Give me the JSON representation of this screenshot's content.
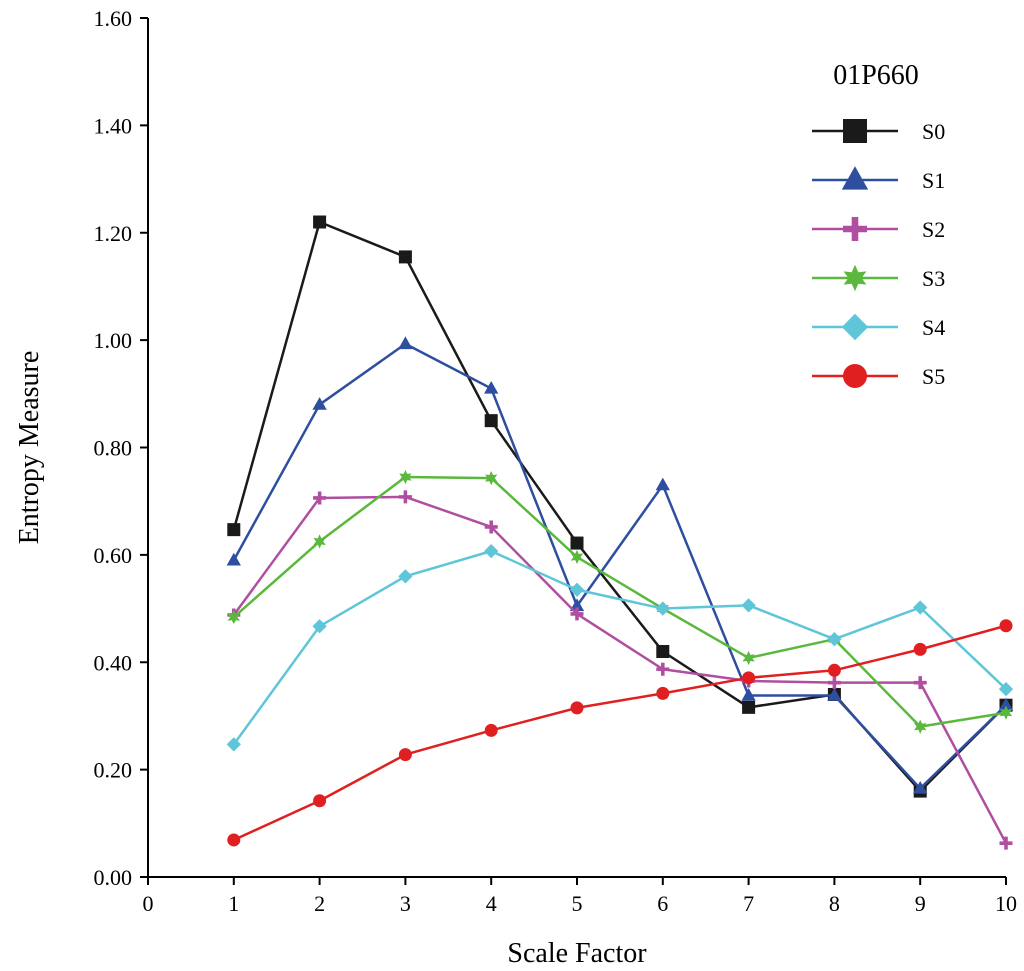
{
  "chart_data": {
    "type": "line",
    "title": "01P660",
    "xlabel": "Scale Factor",
    "ylabel": "Entropy Measure",
    "xlim": [
      0,
      10
    ],
    "ylim": [
      0,
      1.6
    ],
    "x_ticks": [
      0,
      1,
      2,
      3,
      4,
      5,
      6,
      7,
      8,
      9,
      10
    ],
    "x_tick_labels": [
      "0",
      "1",
      "2",
      "3",
      "4",
      "5",
      "6",
      "7",
      "8",
      "9",
      "10"
    ],
    "y_ticks": [
      0,
      0.2,
      0.4,
      0.6,
      0.8,
      1.0,
      1.2,
      1.4,
      1.6
    ],
    "y_tick_labels": [
      "0.00",
      "0.20",
      "0.40",
      "0.60",
      "0.80",
      "1.00",
      "1.20",
      "1.40",
      "1.60"
    ],
    "grid": false,
    "legend_position": "top-right",
    "x": [
      1,
      2,
      3,
      4,
      5,
      6,
      7,
      8,
      9,
      10
    ],
    "series": [
      {
        "name": "S0",
        "color": "#1a1a1a",
        "marker": "square",
        "values": [
          0.647,
          1.22,
          1.155,
          0.85,
          0.622,
          0.42,
          0.316,
          0.34,
          0.16,
          0.32
        ]
      },
      {
        "name": "S1",
        "color": "#2e4fa0",
        "marker": "triangle",
        "values": [
          0.59,
          0.88,
          0.993,
          0.91,
          0.505,
          0.73,
          0.338,
          0.338,
          0.165,
          0.32
        ]
      },
      {
        "name": "S2",
        "color": "#b04ea0",
        "marker": "plus",
        "values": [
          0.488,
          0.706,
          0.708,
          0.652,
          0.49,
          0.387,
          0.365,
          0.362,
          0.362,
          0.063
        ]
      },
      {
        "name": "S3",
        "color": "#5ab83c",
        "marker": "star",
        "values": [
          0.484,
          0.625,
          0.745,
          0.743,
          0.596,
          0.5,
          0.408,
          0.443,
          0.28,
          0.306
        ]
      },
      {
        "name": "S4",
        "color": "#5ec6d8",
        "marker": "diamond",
        "values": [
          0.247,
          0.467,
          0.56,
          0.607,
          0.535,
          0.5,
          0.506,
          0.443,
          0.502,
          0.35
        ]
      },
      {
        "name": "S5",
        "color": "#e02020",
        "marker": "circle",
        "values": [
          0.069,
          0.142,
          0.228,
          0.273,
          0.315,
          0.342,
          0.371,
          0.385,
          0.424,
          0.468
        ]
      }
    ]
  }
}
